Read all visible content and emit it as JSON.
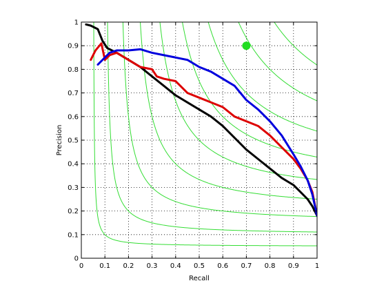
{
  "chart_data": {
    "type": "line",
    "title": "",
    "xlabel": "Recall",
    "ylabel": "Precision",
    "xlim": [
      0,
      1
    ],
    "ylim": [
      0,
      1
    ],
    "grid": true,
    "grid_style": "dotted",
    "xticks": [
      0,
      0.1,
      0.2,
      0.3,
      0.4,
      0.5,
      0.6,
      0.7,
      0.8,
      0.9,
      1
    ],
    "xtick_labels": [
      "0",
      "0.1",
      "0.2",
      "0.3",
      "0.4",
      "0.5",
      "0.6",
      "0.7",
      "0.8",
      "0.9",
      "1"
    ],
    "yticks": [
      0,
      0.1,
      0.2,
      0.3,
      0.4,
      0.5,
      0.6,
      0.7,
      0.8,
      0.9,
      1
    ],
    "ytick_labels": [
      "0",
      "0.1",
      "0.2",
      "0.3",
      "0.4",
      "0.5",
      "0.6",
      "0.7",
      "0.8",
      "0.9",
      "1"
    ],
    "iso_f_contours": {
      "color": "#33dd33",
      "f_values": [
        0.1,
        0.2,
        0.3,
        0.4,
        0.5,
        0.6,
        0.7,
        0.8,
        0.9
      ]
    },
    "highlight_point": {
      "x": 0.7,
      "y": 0.9,
      "color": "#22dd22"
    },
    "series": [
      {
        "name": "black",
        "color": "#000000",
        "points": [
          [
            0.02,
            0.99
          ],
          [
            0.04,
            0.985
          ],
          [
            0.07,
            0.97
          ],
          [
            0.09,
            0.92
          ],
          [
            0.11,
            0.89
          ],
          [
            0.15,
            0.87
          ],
          [
            0.2,
            0.84
          ],
          [
            0.25,
            0.81
          ],
          [
            0.3,
            0.77
          ],
          [
            0.35,
            0.73
          ],
          [
            0.4,
            0.69
          ],
          [
            0.45,
            0.66
          ],
          [
            0.5,
            0.63
          ],
          [
            0.55,
            0.6
          ],
          [
            0.6,
            0.56
          ],
          [
            0.65,
            0.51
          ],
          [
            0.7,
            0.46
          ],
          [
            0.75,
            0.42
          ],
          [
            0.8,
            0.38
          ],
          [
            0.85,
            0.34
          ],
          [
            0.9,
            0.31
          ],
          [
            0.93,
            0.28
          ],
          [
            0.96,
            0.25
          ],
          [
            0.98,
            0.22
          ],
          [
            1.0,
            0.18
          ]
        ]
      },
      {
        "name": "red",
        "color": "#dd0000",
        "points": [
          [
            0.04,
            0.84
          ],
          [
            0.06,
            0.88
          ],
          [
            0.085,
            0.91
          ],
          [
            0.1,
            0.84
          ],
          [
            0.12,
            0.86
          ],
          [
            0.15,
            0.87
          ],
          [
            0.2,
            0.84
          ],
          [
            0.25,
            0.81
          ],
          [
            0.3,
            0.8
          ],
          [
            0.32,
            0.77
          ],
          [
            0.35,
            0.76
          ],
          [
            0.4,
            0.75
          ],
          [
            0.45,
            0.7
          ],
          [
            0.5,
            0.68
          ],
          [
            0.55,
            0.66
          ],
          [
            0.6,
            0.64
          ],
          [
            0.65,
            0.6
          ],
          [
            0.7,
            0.58
          ],
          [
            0.75,
            0.56
          ],
          [
            0.8,
            0.52
          ],
          [
            0.85,
            0.47
          ],
          [
            0.9,
            0.42
          ],
          [
            0.93,
            0.38
          ],
          [
            0.96,
            0.33
          ],
          [
            0.98,
            0.28
          ],
          [
            1.0,
            0.18
          ]
        ]
      },
      {
        "name": "blue",
        "color": "#0000dd",
        "points": [
          [
            0.07,
            0.82
          ],
          [
            0.09,
            0.84
          ],
          [
            0.12,
            0.87
          ],
          [
            0.15,
            0.88
          ],
          [
            0.2,
            0.88
          ],
          [
            0.25,
            0.885
          ],
          [
            0.3,
            0.87
          ],
          [
            0.35,
            0.86
          ],
          [
            0.4,
            0.85
          ],
          [
            0.45,
            0.84
          ],
          [
            0.5,
            0.81
          ],
          [
            0.55,
            0.79
          ],
          [
            0.6,
            0.76
          ],
          [
            0.65,
            0.73
          ],
          [
            0.7,
            0.67
          ],
          [
            0.75,
            0.63
          ],
          [
            0.8,
            0.58
          ],
          [
            0.85,
            0.52
          ],
          [
            0.9,
            0.44
          ],
          [
            0.93,
            0.39
          ],
          [
            0.96,
            0.33
          ],
          [
            0.98,
            0.27
          ],
          [
            1.0,
            0.18
          ]
        ]
      }
    ]
  }
}
